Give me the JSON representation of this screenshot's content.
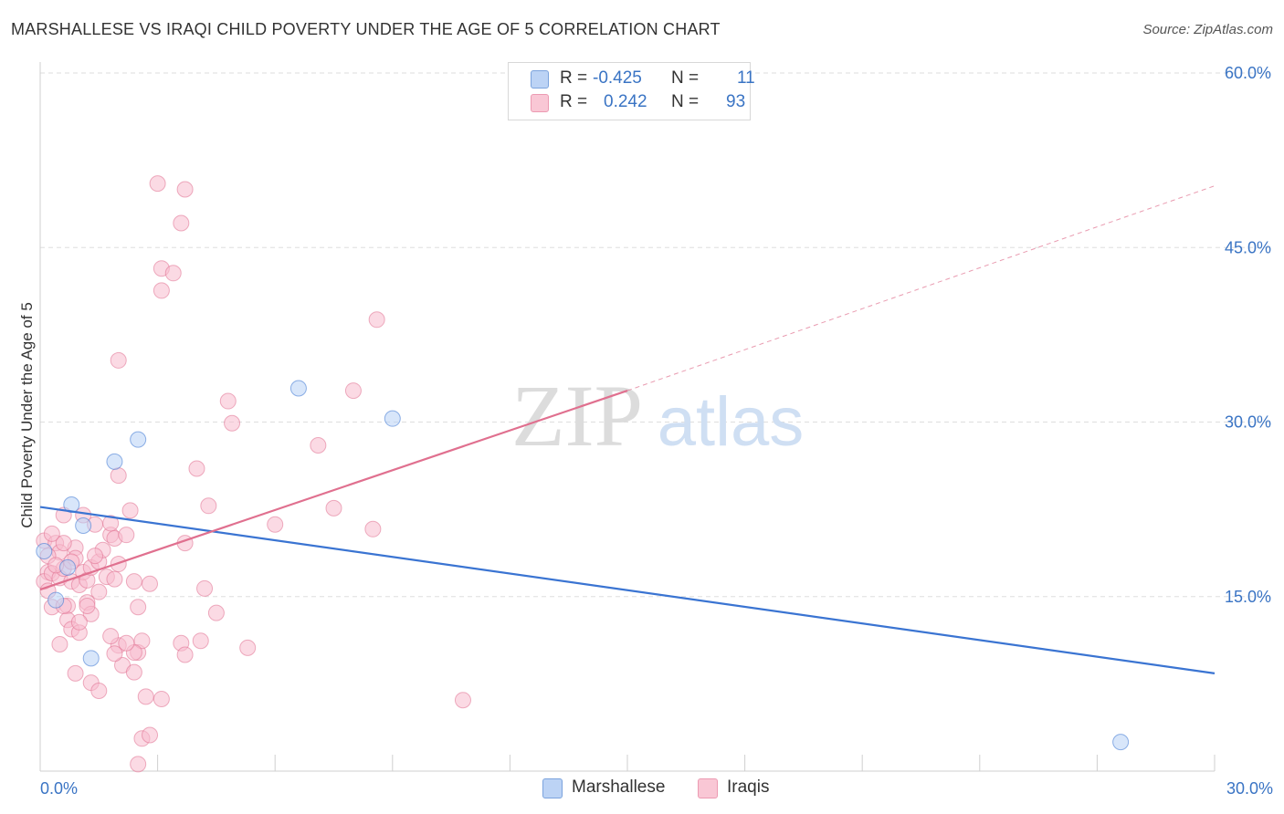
{
  "title": "MARSHALLESE VS IRAQI CHILD POVERTY UNDER THE AGE OF 5 CORRELATION CHART",
  "source": "Source: ZipAtlas.com",
  "watermark": {
    "zip": "ZIP",
    "atlas": "atlas"
  },
  "legend": {
    "r_label": "R =",
    "n_label": "N =",
    "rows": [
      {
        "name": "Marshallese",
        "r": "-0.425",
        "n": "11",
        "color": "#a9c9f4"
      },
      {
        "name": "Iraqis",
        "r": "0.242",
        "n": "93",
        "color": "#f7b8cb"
      }
    ]
  },
  "chart_data": {
    "type": "scatter",
    "title": "MARSHALLESE VS IRAQI CHILD POVERTY UNDER THE AGE OF 5 CORRELATION CHART",
    "xlabel": "",
    "ylabel": "Child Poverty Under the Age of 5",
    "xlim": [
      0,
      30
    ],
    "ylim": [
      0,
      60
    ],
    "x_tick_labels": [
      "0.0%",
      "30.0%"
    ],
    "y_tick_labels": [
      "15.0%",
      "30.0%",
      "45.0%",
      "60.0%"
    ],
    "y_ticks": [
      15,
      30,
      45,
      60
    ],
    "grid": true,
    "series": [
      {
        "name": "Marshallese",
        "color": "#3a74d2",
        "fill": "#b8d2f5",
        "points": [
          [
            0.1,
            18.9
          ],
          [
            0.4,
            14.7
          ],
          [
            0.7,
            17.5
          ],
          [
            0.8,
            22.9
          ],
          [
            1.1,
            21.1
          ],
          [
            1.3,
            9.7
          ],
          [
            1.9,
            26.6
          ],
          [
            2.5,
            28.5
          ],
          [
            6.6,
            32.9
          ],
          [
            9.0,
            30.3
          ],
          [
            27.6,
            2.5
          ]
        ],
        "trend": {
          "x": [
            0,
            30
          ],
          "y": [
            22.7,
            8.4
          ],
          "dashed_beyond": null
        }
      },
      {
        "name": "Iraqis",
        "color": "#e0708f",
        "fill": "#f7bccd",
        "points": [
          [
            0.1,
            19.8
          ],
          [
            0.2,
            17.1
          ],
          [
            0.1,
            16.3
          ],
          [
            0.2,
            15.5
          ],
          [
            0.3,
            17.0
          ],
          [
            0.3,
            14.1
          ],
          [
            0.4,
            19.6
          ],
          [
            0.5,
            18.8
          ],
          [
            0.5,
            16.6
          ],
          [
            0.6,
            22.0
          ],
          [
            0.6,
            17.4
          ],
          [
            0.7,
            14.2
          ],
          [
            0.7,
            13.0
          ],
          [
            0.8,
            16.3
          ],
          [
            0.8,
            12.2
          ],
          [
            0.9,
            19.2
          ],
          [
            0.9,
            18.3
          ],
          [
            1.0,
            16.0
          ],
          [
            1.0,
            11.9
          ],
          [
            1.1,
            22.0
          ],
          [
            1.1,
            17.1
          ],
          [
            1.2,
            14.5
          ],
          [
            1.2,
            16.4
          ],
          [
            1.3,
            17.5
          ],
          [
            1.3,
            13.5
          ],
          [
            1.4,
            21.2
          ],
          [
            1.5,
            15.4
          ],
          [
            1.5,
            18.0
          ],
          [
            1.6,
            19.0
          ],
          [
            1.7,
            16.7
          ],
          [
            1.8,
            20.3
          ],
          [
            1.8,
            21.3
          ],
          [
            1.9,
            16.5
          ],
          [
            1.9,
            20.0
          ],
          [
            2.0,
            17.8
          ],
          [
            2.0,
            10.8
          ],
          [
            2.1,
            9.1
          ],
          [
            2.2,
            20.3
          ],
          [
            2.3,
            22.4
          ],
          [
            2.4,
            16.3
          ],
          [
            2.5,
            14.1
          ],
          [
            2.5,
            10.2
          ],
          [
            2.6,
            11.2
          ],
          [
            2.7,
            6.4
          ],
          [
            2.8,
            16.1
          ],
          [
            2.4,
            10.2
          ],
          [
            2.4,
            8.5
          ],
          [
            2.0,
            25.4
          ],
          [
            2.0,
            35.3
          ],
          [
            3.0,
            50.5
          ],
          [
            3.1,
            43.2
          ],
          [
            3.1,
            41.3
          ],
          [
            3.4,
            42.8
          ],
          [
            3.6,
            47.1
          ],
          [
            3.7,
            50.0
          ],
          [
            3.7,
            19.6
          ],
          [
            4.0,
            26.0
          ],
          [
            4.2,
            15.7
          ],
          [
            4.3,
            22.8
          ],
          [
            4.5,
            13.6
          ],
          [
            4.8,
            31.8
          ],
          [
            4.9,
            29.9
          ],
          [
            5.3,
            10.6
          ],
          [
            6.0,
            21.2
          ],
          [
            7.1,
            28.0
          ],
          [
            7.5,
            22.6
          ],
          [
            8.0,
            32.7
          ],
          [
            8.5,
            20.8
          ],
          [
            8.6,
            38.8
          ],
          [
            10.8,
            6.1
          ],
          [
            0.5,
            10.9
          ],
          [
            0.6,
            14.2
          ],
          [
            0.9,
            8.4
          ],
          [
            1.0,
            12.8
          ],
          [
            1.3,
            7.6
          ],
          [
            1.5,
            6.9
          ],
          [
            1.8,
            11.6
          ],
          [
            1.9,
            10.1
          ],
          [
            2.2,
            11.0
          ],
          [
            2.5,
            0.6
          ],
          [
            2.6,
            2.8
          ],
          [
            2.8,
            3.1
          ],
          [
            3.1,
            6.2
          ],
          [
            3.6,
            11.0
          ],
          [
            3.7,
            10.0
          ],
          [
            4.1,
            11.2
          ],
          [
            0.2,
            18.5
          ],
          [
            0.3,
            20.4
          ],
          [
            0.4,
            17.7
          ],
          [
            0.6,
            19.6
          ],
          [
            0.8,
            18.0
          ],
          [
            1.2,
            14.2
          ],
          [
            1.4,
            18.5
          ]
        ],
        "trend": {
          "x": [
            0,
            15
          ],
          "y": [
            15.6,
            32.7
          ],
          "dashed_beyond": [
            30,
            50.3
          ]
        }
      }
    ]
  }
}
